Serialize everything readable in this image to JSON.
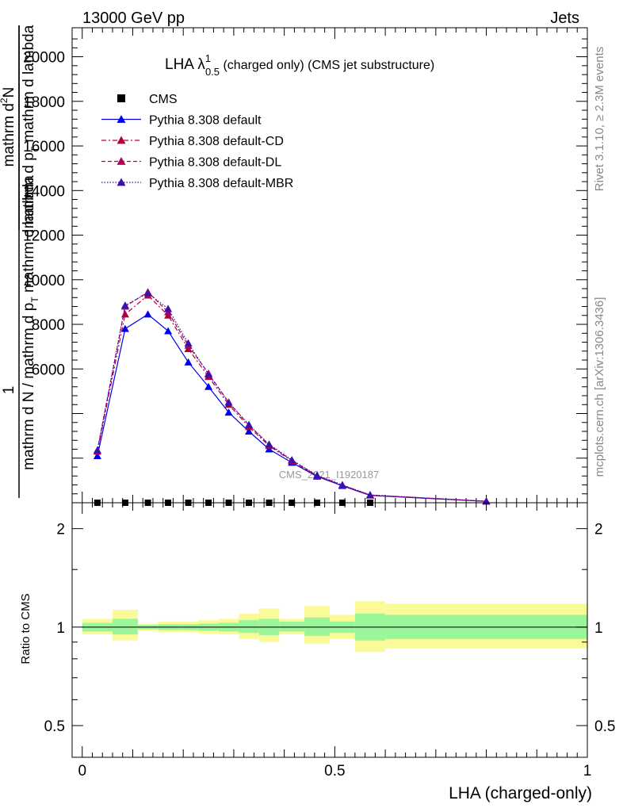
{
  "header": {
    "left": "13000 GeV pp",
    "right": "Jets"
  },
  "side_labels": {
    "rivet": "Rivet 3.1.10, ≥ 2.3M events",
    "mcplots": "mcplots.cern.ch [arXiv:1306.3436]"
  },
  "chart_data": [
    {
      "panel": "main",
      "type": "line",
      "title": {
        "main": "LHA λ",
        "sup": "1",
        "sub": "0.5",
        "rest": " (charged only) (CMS jet substructure)"
      },
      "watermark": "CMS_2021_I1920187",
      "ylabel": {
        "numerator_1": "mathrm d",
        "numerator_sup": "2",
        "numerator_2": "N",
        "denominator": "mathrm d p",
        "denominator_sub": "T",
        "denominator_2": " mathrm d lambda",
        "full": "mathrm d N / mathrm d p",
        "full_2": " mathrm d lambda",
        "unity": "1"
      },
      "yticks": [
        {
          "value": 6000,
          "label": "6000"
        },
        {
          "value": 8000,
          "label": "8000"
        },
        {
          "value": 10000,
          "label": "10000"
        },
        {
          "value": 12000,
          "label": "12000"
        },
        {
          "value": 14000,
          "label": "14000"
        },
        {
          "value": 16000,
          "label": "16000"
        },
        {
          "value": 18000,
          "label": "18000"
        },
        {
          "value": 20000,
          "label": "20000"
        }
      ],
      "ylim": [
        0,
        21300
      ],
      "xlim": [
        -0.02,
        1.0
      ],
      "legend_position": "top-left",
      "series": [
        {
          "name": "CMS",
          "color": "#000000",
          "marker": "square",
          "x": [
            0.03,
            0.085,
            0.13,
            0.17,
            0.21,
            0.25,
            0.29,
            0.33,
            0.37,
            0.415,
            0.465,
            0.515,
            0.57
          ],
          "y": [
            0,
            0,
            0,
            0,
            0,
            0,
            0,
            0,
            0,
            0,
            0,
            0,
            0
          ]
        },
        {
          "name": "Pythia 8.308 default",
          "color": "#0000ee",
          "dash": "",
          "marker": "triangle",
          "x": [
            0.03,
            0.085,
            0.13,
            0.17,
            0.21,
            0.25,
            0.29,
            0.33,
            0.37,
            0.415,
            0.465,
            0.515,
            0.57,
            0.8
          ],
          "y": [
            2100,
            7800,
            8450,
            7700,
            6300,
            5200,
            4050,
            3200,
            2400,
            1800,
            1180,
            760,
            330,
            60
          ]
        },
        {
          "name": "Pythia 8.308 default-CD",
          "color": "#b0003c",
          "dash": "6,3,2,3",
          "marker": "triangle",
          "x": [
            0.03,
            0.085,
            0.13,
            0.17,
            0.21,
            0.25,
            0.29,
            0.33,
            0.37,
            0.415,
            0.465,
            0.515,
            0.57,
            0.8
          ],
          "y": [
            2300,
            8450,
            9300,
            8400,
            6900,
            5650,
            4400,
            3400,
            2550,
            1870,
            1200,
            780,
            340,
            65
          ]
        },
        {
          "name": "Pythia 8.308 default-DL",
          "color": "#b0005a",
          "dash": "5,3",
          "marker": "triangle",
          "x": [
            0.03,
            0.085,
            0.13,
            0.17,
            0.21,
            0.25,
            0.29,
            0.33,
            0.37,
            0.415,
            0.465,
            0.515,
            0.57,
            0.8
          ],
          "y": [
            2350,
            8800,
            9450,
            8550,
            7050,
            5800,
            4500,
            3480,
            2600,
            1900,
            1210,
            790,
            345,
            65
          ]
        },
        {
          "name": "Pythia 8.308 default-MBR",
          "color": "#3a0fb0",
          "dash": "1.5,2",
          "marker": "triangle",
          "x": [
            0.03,
            0.085,
            0.13,
            0.17,
            0.21,
            0.25,
            0.29,
            0.33,
            0.37,
            0.415,
            0.465,
            0.515,
            0.57,
            0.8
          ],
          "y": [
            2350,
            8850,
            9400,
            8700,
            7150,
            5750,
            4500,
            3500,
            2620,
            1920,
            1230,
            800,
            350,
            70
          ]
        }
      ]
    },
    {
      "panel": "ratio",
      "type": "area",
      "ylabel": "Ratio to CMS",
      "xlabel": "LHA (charged-only)",
      "log_y": true,
      "ylim": [
        0.4,
        2.4
      ],
      "xlim": [
        -0.02,
        1.0
      ],
      "yticks": [
        {
          "value": 0.5,
          "label": "0.5"
        },
        {
          "value": 1,
          "label": "1"
        },
        {
          "value": 2,
          "label": "2"
        }
      ],
      "xticks": [
        {
          "value": 0,
          "label": "0"
        },
        {
          "value": 0.5,
          "label": "0.5"
        },
        {
          "value": 1,
          "label": "1"
        }
      ],
      "band_colors": {
        "stat": "#99f799",
        "total": "#fafa99"
      },
      "bins": [
        {
          "lo": 0.0,
          "hi": 0.06,
          "stat": [
            0.97,
            1.03
          ],
          "total": [
            0.95,
            1.06
          ]
        },
        {
          "lo": 0.06,
          "hi": 0.11,
          "stat": [
            0.95,
            1.06
          ],
          "total": [
            0.91,
            1.13
          ]
        },
        {
          "lo": 0.11,
          "hi": 0.15,
          "stat": [
            0.985,
            1.015
          ],
          "total": [
            0.975,
            1.025
          ]
        },
        {
          "lo": 0.15,
          "hi": 0.19,
          "stat": [
            0.98,
            1.02
          ],
          "total": [
            0.965,
            1.04
          ]
        },
        {
          "lo": 0.19,
          "hi": 0.23,
          "stat": [
            0.98,
            1.02
          ],
          "total": [
            0.965,
            1.04
          ]
        },
        {
          "lo": 0.23,
          "hi": 0.27,
          "stat": [
            0.975,
            1.025
          ],
          "total": [
            0.955,
            1.05
          ]
        },
        {
          "lo": 0.27,
          "hi": 0.31,
          "stat": [
            0.97,
            1.03
          ],
          "total": [
            0.95,
            1.06
          ]
        },
        {
          "lo": 0.31,
          "hi": 0.35,
          "stat": [
            0.96,
            1.05
          ],
          "total": [
            0.92,
            1.1
          ]
        },
        {
          "lo": 0.35,
          "hi": 0.39,
          "stat": [
            0.945,
            1.06
          ],
          "total": [
            0.9,
            1.14
          ]
        },
        {
          "lo": 0.39,
          "hi": 0.44,
          "stat": [
            0.97,
            1.04
          ],
          "total": [
            0.95,
            1.06
          ]
        },
        {
          "lo": 0.44,
          "hi": 0.49,
          "stat": [
            0.94,
            1.07
          ],
          "total": [
            0.89,
            1.16
          ]
        },
        {
          "lo": 0.49,
          "hi": 0.54,
          "stat": [
            0.96,
            1.04
          ],
          "total": [
            0.92,
            1.09
          ]
        },
        {
          "lo": 0.54,
          "hi": 0.6,
          "stat": [
            0.91,
            1.1
          ],
          "total": [
            0.84,
            1.2
          ]
        },
        {
          "lo": 0.6,
          "hi": 1.0,
          "stat": [
            0.92,
            1.09
          ],
          "total": [
            0.86,
            1.18
          ]
        }
      ],
      "reference": 1
    }
  ]
}
